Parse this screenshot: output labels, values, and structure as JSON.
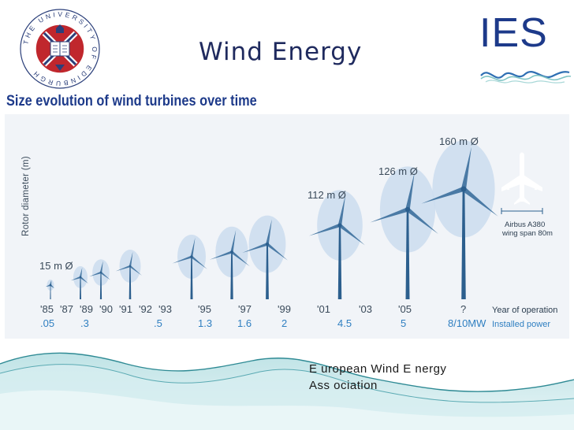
{
  "header": {
    "title": "Wind Energy",
    "logo_text": "IES",
    "seal_text": "THE UNIVERSITY OF EDINBURGH"
  },
  "diagram": {
    "subtitle": "Size evolution of wind turbines over time",
    "y_axis_label": "Rotor diameter (m)",
    "years": [
      "'85",
      "'87",
      "'89",
      "'90",
      "'91",
      "'92",
      "'93",
      "'95",
      "'97",
      "'99",
      "'01",
      "'03",
      "'05",
      "?"
    ],
    "powers": [
      ".05",
      ".3",
      ".5",
      "1.3",
      "1.6",
      "2",
      "4.5",
      "5",
      "8/10MW"
    ],
    "diameter_labels": [
      "15 m Ø",
      "112 m Ø",
      "126 m Ø",
      "160 m Ø"
    ],
    "row_year_label": "Year of operation",
    "row_power_label": "Installed power",
    "airbus_label_1": "Airbus A380",
    "airbus_label_2": "wing span 80m"
  },
  "footer": {
    "credit_line1": "E uropean Wind E nergy",
    "credit_line2": "Ass ociation"
  },
  "colors": {
    "navy": "#1d3a8a",
    "turbine_blue": "#2c5f8e",
    "rotor_fill": "#cbdcee",
    "label_gray": "#3a4a5a",
    "power_blue": "#2f7fc1",
    "wave_teal": "#7fc4c4",
    "seal_red": "#c0272d"
  }
}
